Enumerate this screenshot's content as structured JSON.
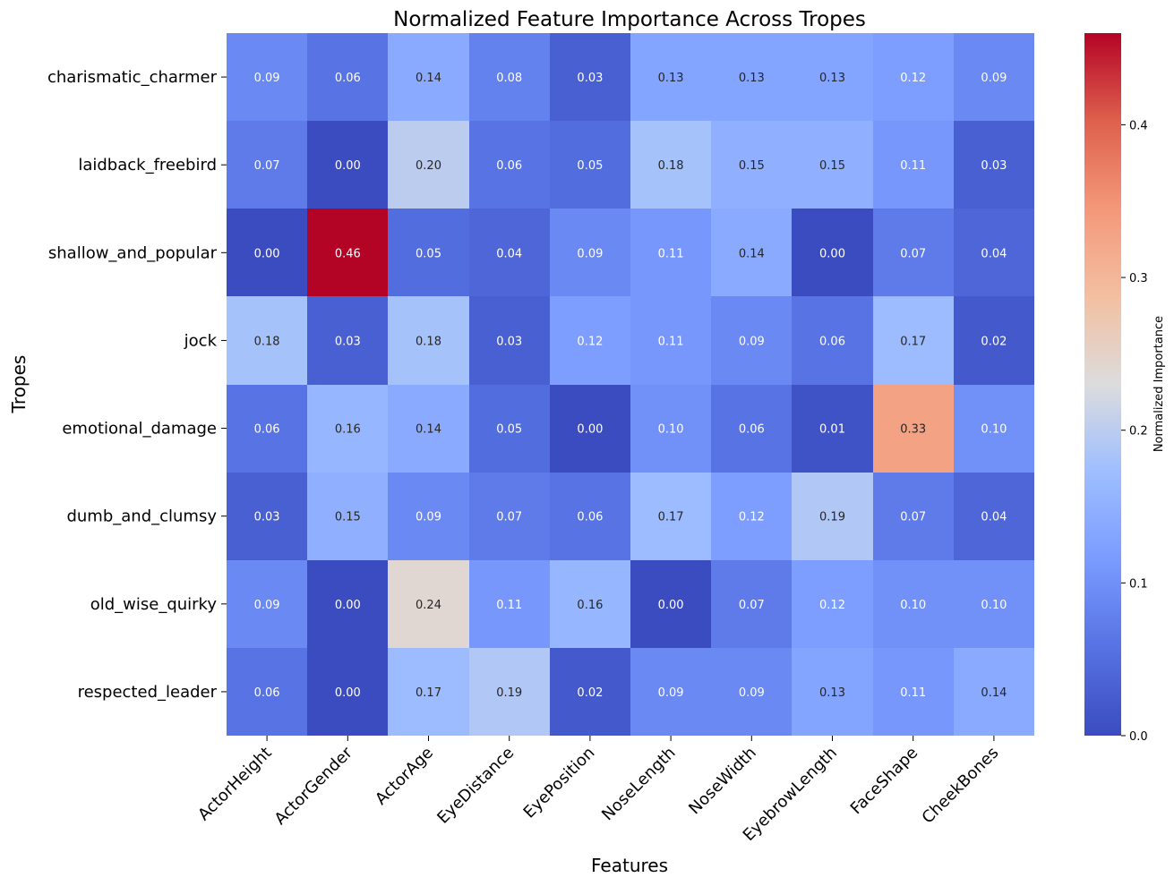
{
  "chart_data": {
    "type": "heatmap",
    "title": "Normalized Feature Importance Across Tropes",
    "xlabel": "Features",
    "ylabel": "Tropes",
    "colorbar_label": "Normalized Importance",
    "colormap": "coolwarm",
    "vmin": 0.0,
    "vmax": 0.46,
    "colorbar_ticks": [
      0.0,
      0.1,
      0.2,
      0.3,
      0.4
    ],
    "colorbar_tick_labels": [
      "0.0",
      "0.1",
      "0.2",
      "0.3",
      "0.4"
    ],
    "x_categories": [
      "ActorHeight",
      "ActorGender",
      "ActorAge",
      "EyeDistance",
      "EyePosition",
      "NoseLength",
      "NoseWidth",
      "EyebrowLength",
      "FaceShape",
      "CheekBones"
    ],
    "y_categories": [
      "charismatic_charmer",
      "laidback_freebird",
      "shallow_and_popular",
      "jock",
      "emotional_damage",
      "dumb_and_clumsy",
      "old_wise_quirky",
      "respected_leader"
    ],
    "values": [
      [
        0.09,
        0.06,
        0.14,
        0.08,
        0.03,
        0.13,
        0.13,
        0.13,
        0.12,
        0.09
      ],
      [
        0.07,
        0.0,
        0.2,
        0.06,
        0.05,
        0.18,
        0.15,
        0.15,
        0.11,
        0.03
      ],
      [
        0.0,
        0.46,
        0.05,
        0.04,
        0.09,
        0.11,
        0.14,
        0.0,
        0.07,
        0.04
      ],
      [
        0.18,
        0.03,
        0.18,
        0.03,
        0.12,
        0.11,
        0.09,
        0.06,
        0.17,
        0.02
      ],
      [
        0.06,
        0.16,
        0.14,
        0.05,
        0.0,
        0.1,
        0.06,
        0.01,
        0.33,
        0.1
      ],
      [
        0.03,
        0.15,
        0.09,
        0.07,
        0.06,
        0.17,
        0.12,
        0.19,
        0.07,
        0.04
      ],
      [
        0.09,
        0.0,
        0.24,
        0.11,
        0.16,
        0.0,
        0.07,
        0.12,
        0.1,
        0.1
      ],
      [
        0.06,
        0.0,
        0.17,
        0.19,
        0.02,
        0.09,
        0.09,
        0.13,
        0.11,
        0.14
      ]
    ],
    "value_labels": [
      [
        "0.09",
        "0.06",
        "0.14",
        "0.08",
        "0.03",
        "0.13",
        "0.13",
        "0.13",
        "0.12",
        "0.09"
      ],
      [
        "0.07",
        "0.00",
        "0.20",
        "0.06",
        "0.05",
        "0.18",
        "0.15",
        "0.15",
        "0.11",
        "0.03"
      ],
      [
        "0.00",
        "0.46",
        "0.05",
        "0.04",
        "0.09",
        "0.11",
        "0.14",
        "0.00",
        "0.07",
        "0.04"
      ],
      [
        "0.18",
        "0.03",
        "0.18",
        "0.03",
        "0.12",
        "0.11",
        "0.09",
        "0.06",
        "0.17",
        "0.02"
      ],
      [
        "0.06",
        "0.16",
        "0.14",
        "0.05",
        "0.00",
        "0.10",
        "0.06",
        "0.01",
        "0.33",
        "0.10"
      ],
      [
        "0.03",
        "0.15",
        "0.09",
        "0.07",
        "0.06",
        "0.17",
        "0.12",
        "0.19",
        "0.07",
        "0.04"
      ],
      [
        "0.09",
        "0.00",
        "0.24",
        "0.11",
        "0.16",
        "0.00",
        "0.07",
        "0.12",
        "0.10",
        "0.10"
      ],
      [
        "0.06",
        "0.00",
        "0.17",
        "0.19",
        "0.02",
        "0.09",
        "0.09",
        "0.13",
        "0.11",
        "0.14"
      ]
    ]
  }
}
